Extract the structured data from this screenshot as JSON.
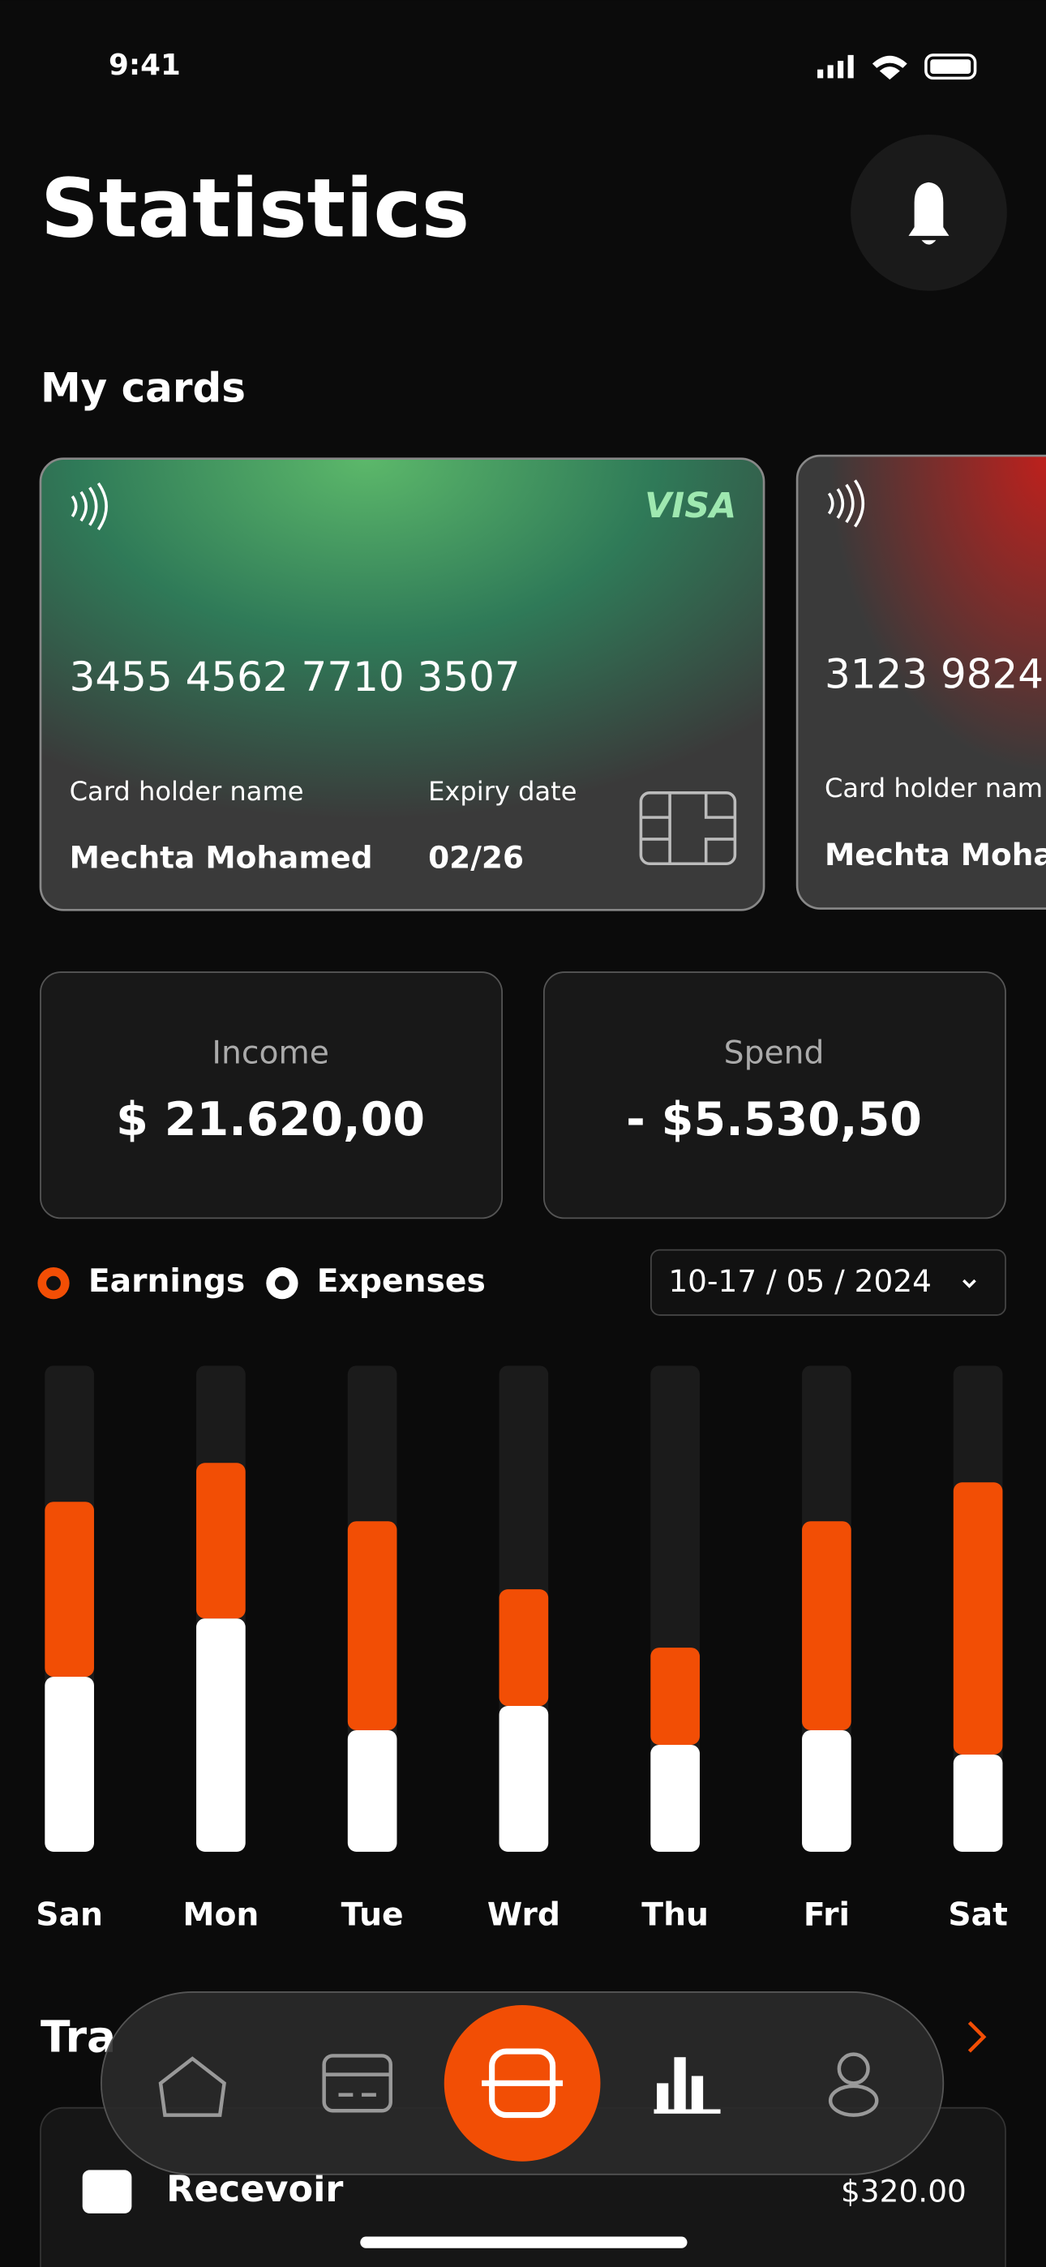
{
  "status": {
    "time": "9:41"
  },
  "header": {
    "title": "Statistics"
  },
  "cards_section": {
    "title": "My cards",
    "cards": [
      {
        "brand": "VISA",
        "number": "3455 4562 7710 3507",
        "holder_label": "Card holder name",
        "holder": "Mechta Mohamed",
        "expiry_label": "Expiry date",
        "expiry": "02/26"
      },
      {
        "number": "3123 9824",
        "holder_label": "Card holder nam",
        "holder": "Mechta Moha"
      }
    ]
  },
  "summary": {
    "income_label": "Income",
    "income": "$ 21.620,00",
    "spend_label": "Spend",
    "spend": "- $5.530,50"
  },
  "date_range": "10-17 / 05 / 2024",
  "chart_data": {
    "type": "bar",
    "stacked": true,
    "categories": [
      "San",
      "Mon",
      "Tue",
      "Wrd",
      "Thu",
      "Fri",
      "Sat"
    ],
    "series": [
      {
        "name": "Earnings",
        "color": "#f24e05",
        "values": [
          36,
          32,
          43,
          24,
          20,
          43,
          56
        ]
      },
      {
        "name": "Expenses",
        "color": "#ffffff",
        "values": [
          36,
          48,
          25,
          30,
          22,
          25,
          20
        ]
      }
    ],
    "ylim": [
      0,
      100
    ]
  },
  "transactions": {
    "title": "Tra",
    "rows": [
      {
        "label": "Recevoir",
        "amount": "$320.00"
      }
    ]
  }
}
